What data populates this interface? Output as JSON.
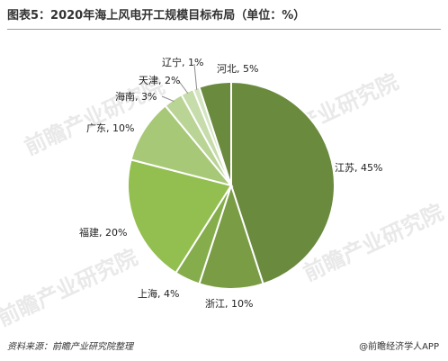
{
  "title": "图表5：2020年海上风电开工规模目标布局（单位：%）",
  "source": "资料来源：前瞻产业研究院整理",
  "brand": "@前瞻经济学人APP",
  "watermark": "前瞻产业研究院",
  "colors": {
    "slices": [
      "#6a8a3e",
      "#799c44",
      "#86ad4b",
      "#93be50",
      "#a7c977",
      "#b9d494",
      "#c6dcab",
      "#d4e5c1"
    ]
  },
  "chart_data": {
    "type": "pie",
    "title": "图表5：2020年海上风电开工规模目标布局（单位：%）",
    "categories": [
      "江苏",
      "浙江",
      "上海",
      "福建",
      "广东",
      "海南",
      "天津",
      "辽宁",
      "河北"
    ],
    "values": [
      45,
      10,
      4,
      20,
      10,
      3,
      2,
      1,
      5
    ],
    "labels": [
      "江苏, 45%",
      "浙江, 10%",
      "上海, 4%",
      "福建, 20%",
      "广东, 10%",
      "海南, 3%",
      "天津, 2%",
      "辽宁, 1%",
      "河北, 5%"
    ]
  }
}
